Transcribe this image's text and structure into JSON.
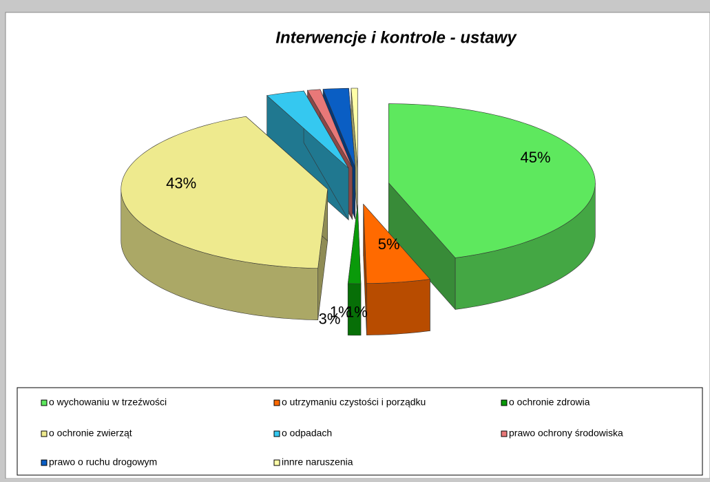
{
  "chart_data": {
    "type": "pie3d",
    "title": "Interwencje i kontrole - ustawy",
    "categories": [
      "o wychowaniu w trzeźwości",
      "o utrzymaniu czystości i porządku",
      "o ochronie zdrowia",
      "o ochronie  zwierząt",
      "o odpadach",
      "prawo ochrony środowiska",
      "prawo o ruchu drogowym",
      "innre naruszenia"
    ],
    "values": [
      45,
      5,
      1,
      43,
      3,
      1,
      2,
      0.5
    ],
    "value_labels": [
      "45%",
      "5%",
      "1%",
      "43%",
      "3%",
      "1%",
      null,
      null
    ],
    "colors": [
      "#5ee85e",
      "#ff6a00",
      "#0a9a0a",
      "#eeea8e",
      "#35c8f0",
      "#e87878",
      "#0a5ec4",
      "#ffffa8"
    ],
    "legend": "bottom"
  }
}
